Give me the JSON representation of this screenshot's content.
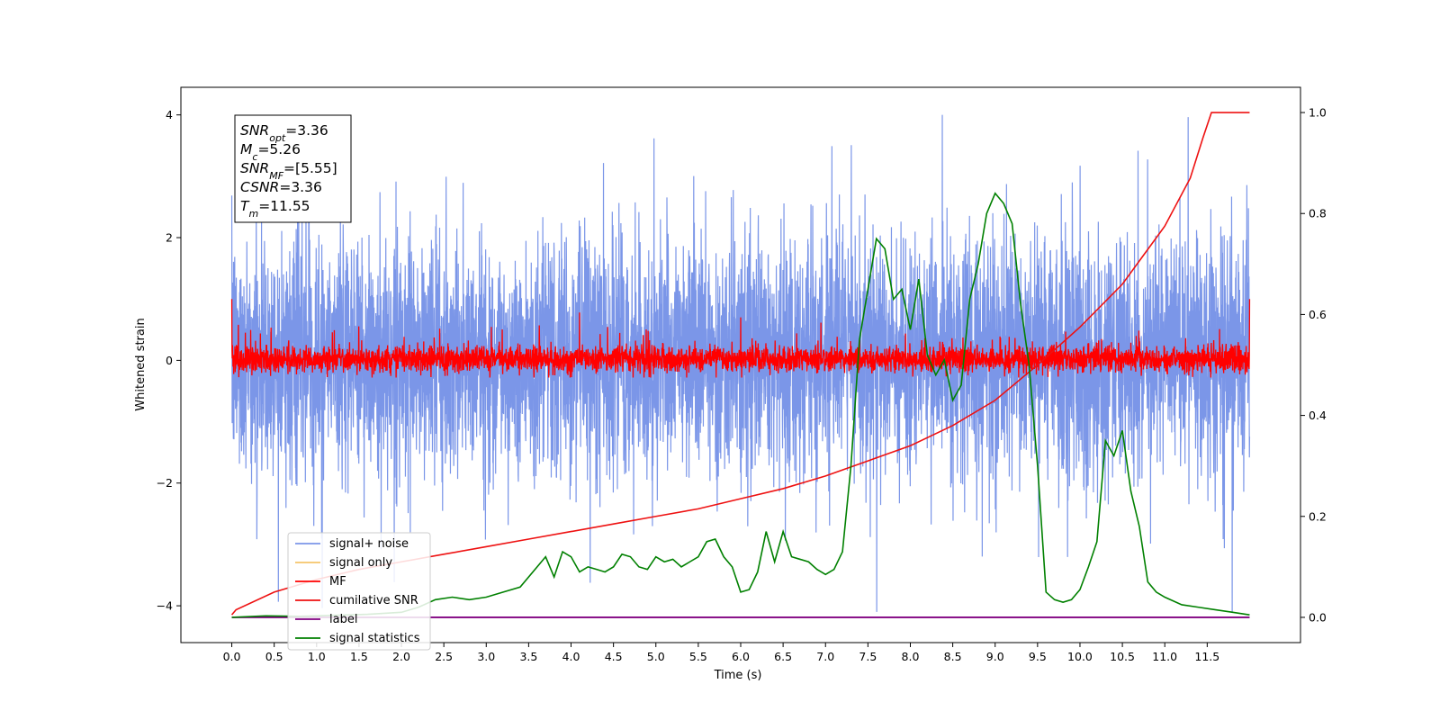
{
  "chart_data": {
    "type": "line",
    "xlabel": "Time (s)",
    "ylabel": "Whitened strain",
    "xlim": [
      -0.6,
      12.6
    ],
    "ylim": [
      -4.6,
      4.45
    ],
    "y2lim": [
      -0.05,
      1.05
    ],
    "x_ticks": [
      0.0,
      0.5,
      1.0,
      1.5,
      2.0,
      2.5,
      3.0,
      3.5,
      4.0,
      4.5,
      5.0,
      5.5,
      6.0,
      6.5,
      7.0,
      7.5,
      8.0,
      8.5,
      9.0,
      9.5,
      10.0,
      10.5,
      11.0,
      11.5
    ],
    "x_tick_labels": [
      "0.0",
      "0.5",
      "1.0",
      "1.5",
      "2.0",
      "2.5",
      "3.0",
      "3.5",
      "4.0",
      "4.5",
      "5.0",
      "5.5",
      "6.0",
      "6.5",
      "7.0",
      "7.5",
      "8.0",
      "8.5",
      "9.0",
      "9.5",
      "10.0",
      "10.5",
      "11.0",
      "11.5"
    ],
    "y_ticks": [
      -4,
      -2,
      0,
      2,
      4
    ],
    "y_tick_labels": [
      "−4",
      "−2",
      "0",
      "2",
      "4"
    ],
    "y2_ticks": [
      0.0,
      0.2,
      0.4,
      0.6,
      0.8,
      1.0
    ],
    "y2_tick_labels": [
      "0.0",
      "0.2",
      "0.4",
      "0.6",
      "0.8",
      "1.0"
    ],
    "grid": false,
    "legend_position": "lower-left",
    "annotation": {
      "lines": [
        {
          "base": "SNR",
          "sub": "opt",
          "value": "=3.36"
        },
        {
          "base": "M",
          "sub": "c",
          "value": "=5.26"
        },
        {
          "base": "SNR",
          "sub": "MF",
          "value": "=[5.55]"
        },
        {
          "base": "CSNR",
          "sub": "",
          "value": "=3.36"
        },
        {
          "base": "T",
          "sub": "m",
          "value": "=11.55"
        }
      ]
    },
    "noise_envelope": {
      "t_range": [
        0.0,
        12.0
      ],
      "typical_range": [
        -2.0,
        2.5
      ],
      "peak_max": 4.0,
      "peak_min": -4.1
    },
    "series": [
      {
        "name": "signal+ noise",
        "color": "#7b96e8",
        "axis": "left",
        "style": "noise"
      },
      {
        "name": "signal only",
        "color": "#f5c56a",
        "axis": "left",
        "style": "hidden"
      },
      {
        "name": "MF",
        "color": "#ff0000",
        "axis": "left",
        "style": "noise-small",
        "typical_range": [
          -0.25,
          0.35
        ],
        "peaks": [
          [
            0.0,
            1.0
          ],
          [
            4.1,
            0.78
          ],
          [
            12.0,
            1.0
          ]
        ]
      },
      {
        "name": "cumilative SNR",
        "color": "#ee1111",
        "axis": "right",
        "t": [
          0.0,
          0.05,
          0.5,
          1.0,
          1.5,
          2.0,
          2.5,
          3.0,
          3.5,
          4.0,
          4.5,
          5.0,
          5.5,
          6.0,
          6.5,
          7.0,
          7.5,
          8.0,
          8.5,
          9.0,
          9.5,
          10.0,
          10.5,
          11.0,
          11.3,
          11.45,
          11.55,
          12.0
        ],
        "values": [
          0.005,
          0.015,
          0.05,
          0.075,
          0.095,
          0.11,
          0.125,
          0.14,
          0.155,
          0.17,
          0.185,
          0.2,
          0.215,
          0.235,
          0.255,
          0.28,
          0.31,
          0.34,
          0.38,
          0.43,
          0.5,
          0.575,
          0.66,
          0.775,
          0.87,
          0.95,
          1.0,
          1.0
        ]
      },
      {
        "name": "label",
        "color": "#800080",
        "axis": "right",
        "t": [
          0.0,
          11.0,
          12.0
        ],
        "values": [
          0.0,
          0.0,
          0.0
        ]
      },
      {
        "name": "signal statistics",
        "color": "#008000",
        "axis": "right",
        "t": [
          0.0,
          0.4,
          0.8,
          1.2,
          1.6,
          2.0,
          2.2,
          2.4,
          2.6,
          2.8,
          3.0,
          3.2,
          3.4,
          3.6,
          3.7,
          3.8,
          3.9,
          4.0,
          4.1,
          4.2,
          4.3,
          4.4,
          4.5,
          4.6,
          4.7,
          4.8,
          4.9,
          5.0,
          5.1,
          5.2,
          5.3,
          5.4,
          5.5,
          5.6,
          5.7,
          5.8,
          5.9,
          6.0,
          6.1,
          6.2,
          6.3,
          6.4,
          6.5,
          6.6,
          6.7,
          6.8,
          6.9,
          7.0,
          7.1,
          7.2,
          7.3,
          7.4,
          7.5,
          7.6,
          7.7,
          7.8,
          7.9,
          8.0,
          8.1,
          8.2,
          8.3,
          8.4,
          8.5,
          8.6,
          8.7,
          8.8,
          8.9,
          9.0,
          9.1,
          9.2,
          9.3,
          9.4,
          9.5,
          9.6,
          9.7,
          9.8,
          9.9,
          10.0,
          10.1,
          10.2,
          10.3,
          10.4,
          10.5,
          10.6,
          10.7,
          10.8,
          10.9,
          11.0,
          11.2,
          11.4,
          11.6,
          11.8,
          12.0
        ],
        "values": [
          0.0,
          0.003,
          0.002,
          0.004,
          0.006,
          0.01,
          0.02,
          0.035,
          0.04,
          0.035,
          0.04,
          0.05,
          0.06,
          0.1,
          0.12,
          0.08,
          0.13,
          0.12,
          0.09,
          0.1,
          0.095,
          0.09,
          0.1,
          0.125,
          0.12,
          0.1,
          0.095,
          0.12,
          0.11,
          0.115,
          0.1,
          0.11,
          0.12,
          0.15,
          0.155,
          0.12,
          0.1,
          0.05,
          0.055,
          0.09,
          0.17,
          0.11,
          0.17,
          0.12,
          0.115,
          0.11,
          0.095,
          0.085,
          0.095,
          0.13,
          0.3,
          0.55,
          0.65,
          0.75,
          0.73,
          0.63,
          0.65,
          0.57,
          0.67,
          0.52,
          0.48,
          0.51,
          0.43,
          0.46,
          0.63,
          0.7,
          0.8,
          0.84,
          0.82,
          0.78,
          0.62,
          0.5,
          0.3,
          0.05,
          0.035,
          0.03,
          0.035,
          0.055,
          0.1,
          0.15,
          0.35,
          0.32,
          0.37,
          0.25,
          0.18,
          0.07,
          0.05,
          0.04,
          0.025,
          0.02,
          0.015,
          0.01,
          0.005
        ]
      }
    ]
  }
}
